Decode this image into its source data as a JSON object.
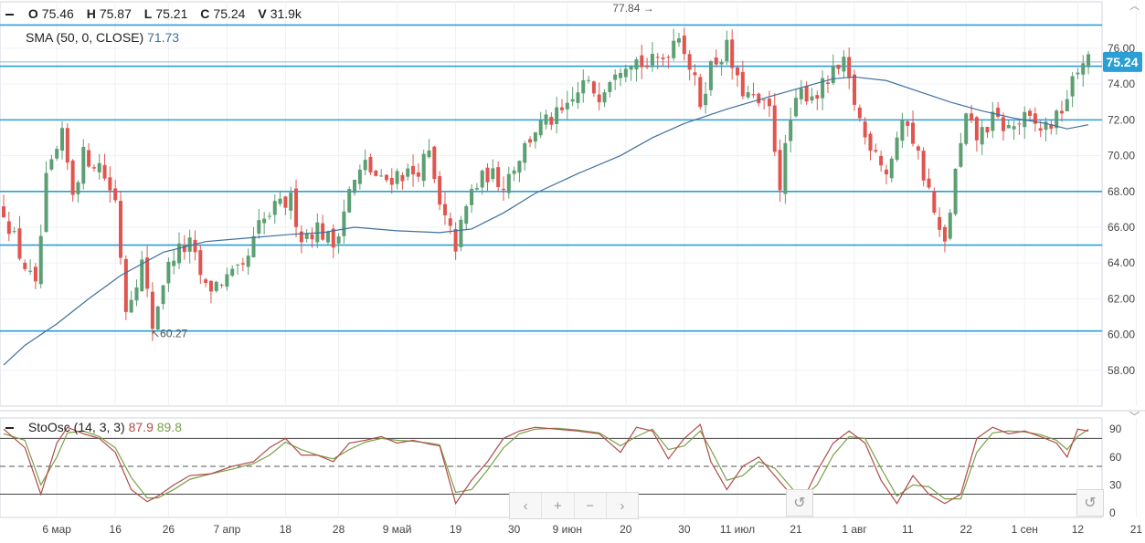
{
  "chart_data": {
    "type": "candlestick",
    "ohlc_legend": [
      {
        "label": "O",
        "value": "75.46"
      },
      {
        "label": "H",
        "value": "75.87"
      },
      {
        "label": "L",
        "value": "75.21"
      },
      {
        "label": "C",
        "value": "75.24"
      },
      {
        "label": "V",
        "value": "31.9k"
      }
    ],
    "sma_legend": {
      "label": "SMA (50, 0, CLOSE)",
      "value": "71.73"
    },
    "stoch_legend": {
      "label": "StoOsc (14, 3, 3)",
      "k": "87.9",
      "d": "89.8"
    },
    "last_price_label": "75.24",
    "last_price": 75.24,
    "ylim": [
      56,
      78.6
    ],
    "yticks": [
      {
        "v": 58,
        "label": "58.00"
      },
      {
        "v": 60,
        "label": "60.00"
      },
      {
        "v": 62,
        "label": "62.00"
      },
      {
        "v": 64,
        "label": "64.00"
      },
      {
        "v": 66,
        "label": "66.00"
      },
      {
        "v": 68,
        "label": "68.00"
      },
      {
        "v": 70,
        "label": "70.00"
      },
      {
        "v": 72,
        "label": "72.00"
      },
      {
        "v": 74,
        "label": "74.00"
      },
      {
        "v": 76,
        "label": "76.00"
      }
    ],
    "levels": [
      75,
      72,
      68,
      65,
      60.2,
      77.3
    ],
    "annotations": [
      {
        "text": "77.84 →",
        "value": 77.84,
        "index": 123,
        "side": "left"
      },
      {
        "text": "↖60.27",
        "value": 60.27,
        "index": 27,
        "side": "right"
      }
    ],
    "xticks": [
      {
        "i": 10,
        "label": "6 мар"
      },
      {
        "i": 21,
        "label": "16"
      },
      {
        "i": 31,
        "label": "26"
      },
      {
        "i": 42,
        "label": "7 апр"
      },
      {
        "i": 53,
        "label": "18"
      },
      {
        "i": 63,
        "label": "28"
      },
      {
        "i": 74,
        "label": "9 май"
      },
      {
        "i": 85,
        "label": "19"
      },
      {
        "i": 96,
        "label": "30"
      },
      {
        "i": 106,
        "label": "9 июн"
      },
      {
        "i": 117,
        "label": "20"
      },
      {
        "i": 128,
        "label": "30"
      },
      {
        "i": 138,
        "label": "11 июл"
      },
      {
        "i": 149,
        "label": "21"
      },
      {
        "i": 160,
        "label": "1 авг"
      },
      {
        "i": 170,
        "label": "11"
      },
      {
        "i": 181,
        "label": "22"
      },
      {
        "i": 192,
        "label": "1 сен"
      },
      {
        "i": 202,
        "label": "12"
      },
      {
        "i": 213,
        "label": "21"
      }
    ],
    "close_path": [
      [
        0,
        67
      ],
      [
        3,
        64.5
      ],
      [
        6,
        62.5
      ],
      [
        8,
        68.5
      ],
      [
        11,
        71
      ],
      [
        13,
        68
      ],
      [
        15,
        70
      ],
      [
        18,
        69.5
      ],
      [
        21,
        67.5
      ],
      [
        23,
        61.5
      ],
      [
        26,
        64
      ],
      [
        28,
        60.5
      ],
      [
        30,
        63
      ],
      [
        32,
        64.5
      ],
      [
        35,
        65
      ],
      [
        38,
        62.5
      ],
      [
        41,
        63
      ],
      [
        45,
        63.5
      ],
      [
        48,
        66
      ],
      [
        51,
        67
      ],
      [
        54,
        67.5
      ],
      [
        56,
        65.5
      ],
      [
        59,
        66
      ],
      [
        62,
        65
      ],
      [
        65,
        68
      ],
      [
        68,
        69.5
      ],
      [
        71,
        68.5
      ],
      [
        74,
        69
      ],
      [
        77,
        69
      ],
      [
        80,
        70
      ],
      [
        82,
        67
      ],
      [
        85,
        65
      ],
      [
        88,
        68
      ],
      [
        91,
        69
      ],
      [
        94,
        68.5
      ],
      [
        97,
        70
      ],
      [
        100,
        71.5
      ],
      [
        103,
        72
      ],
      [
        106,
        72.5
      ],
      [
        109,
        74
      ],
      [
        112,
        73.5
      ],
      [
        115,
        75
      ],
      [
        118,
        75.5
      ],
      [
        121,
        75
      ],
      [
        124,
        75.5
      ],
      [
        127,
        77
      ],
      [
        129,
        75
      ],
      [
        131,
        73
      ],
      [
        133,
        75
      ],
      [
        136,
        76
      ],
      [
        138,
        74
      ],
      [
        141,
        73
      ],
      [
        144,
        72.5
      ],
      [
        146,
        68.5
      ],
      [
        148,
        72
      ],
      [
        150,
        73.5
      ],
      [
        153,
        73.5
      ],
      [
        156,
        74.5
      ],
      [
        158,
        75
      ],
      [
        160,
        73
      ],
      [
        162,
        71
      ],
      [
        164,
        70.5
      ],
      [
        166,
        69
      ],
      [
        168,
        71
      ],
      [
        170,
        72
      ],
      [
        172,
        70
      ],
      [
        174,
        68
      ],
      [
        176,
        65.5
      ],
      [
        177,
        65
      ],
      [
        179,
        69
      ],
      [
        181,
        72
      ],
      [
        183,
        71
      ],
      [
        186,
        72
      ],
      [
        189,
        71.5
      ],
      [
        192,
        72
      ],
      [
        195,
        71.5
      ],
      [
        198,
        72
      ],
      [
        201,
        74
      ],
      [
        203,
        75.5
      ],
      [
        204,
        75.24
      ]
    ],
    "sma_path": [
      [
        0,
        58.3
      ],
      [
        4,
        59.4
      ],
      [
        10,
        60.6
      ],
      [
        16,
        62
      ],
      [
        22,
        63.3
      ],
      [
        30,
        64.6
      ],
      [
        38,
        65.2
      ],
      [
        46,
        65.4
      ],
      [
        54,
        65.6
      ],
      [
        60,
        65.7
      ],
      [
        66,
        66
      ],
      [
        74,
        65.8
      ],
      [
        82,
        65.7
      ],
      [
        88,
        65.9
      ],
      [
        94,
        66.8
      ],
      [
        100,
        67.9
      ],
      [
        108,
        69
      ],
      [
        116,
        70
      ],
      [
        122,
        71
      ],
      [
        128,
        71.8
      ],
      [
        136,
        72.6
      ],
      [
        144,
        73.3
      ],
      [
        150,
        73.8
      ],
      [
        156,
        74.3
      ],
      [
        160,
        74.4
      ],
      [
        166,
        74.2
      ],
      [
        172,
        73.6
      ],
      [
        178,
        73
      ],
      [
        184,
        72.5
      ],
      [
        190,
        72.1
      ],
      [
        196,
        71.8
      ],
      [
        200,
        71.5
      ],
      [
        204,
        71.73
      ]
    ],
    "stoch_ylim": [
      -5,
      102
    ],
    "stoch_yticks": [
      {
        "v": 0,
        "label": "0"
      },
      {
        "v": 30,
        "label": "30"
      },
      {
        "v": 60,
        "label": "60"
      },
      {
        "v": 90,
        "label": "90"
      }
    ],
    "stoch_levels": {
      "upper": 80,
      "middle": 50,
      "lower": 20
    },
    "stoch_k": [
      [
        0,
        90
      ],
      [
        4,
        70
      ],
      [
        7,
        20
      ],
      [
        10,
        75
      ],
      [
        12,
        92
      ],
      [
        15,
        85
      ],
      [
        18,
        80
      ],
      [
        21,
        65
      ],
      [
        24,
        25
      ],
      [
        27,
        12
      ],
      [
        29,
        18
      ],
      [
        32,
        30
      ],
      [
        35,
        40
      ],
      [
        39,
        42
      ],
      [
        43,
        50
      ],
      [
        47,
        55
      ],
      [
        50,
        70
      ],
      [
        53,
        80
      ],
      [
        56,
        62
      ],
      [
        59,
        62
      ],
      [
        62,
        55
      ],
      [
        65,
        75
      ],
      [
        68,
        78
      ],
      [
        71,
        82
      ],
      [
        74,
        75
      ],
      [
        77,
        78
      ],
      [
        80,
        74
      ],
      [
        82,
        72
      ],
      [
        85,
        10
      ],
      [
        88,
        35
      ],
      [
        91,
        55
      ],
      [
        94,
        80
      ],
      [
        97,
        88
      ],
      [
        100,
        92
      ],
      [
        104,
        90
      ],
      [
        108,
        88
      ],
      [
        112,
        85
      ],
      [
        116,
        65
      ],
      [
        119,
        92
      ],
      [
        122,
        88
      ],
      [
        125,
        58
      ],
      [
        128,
        80
      ],
      [
        131,
        95
      ],
      [
        133,
        55
      ],
      [
        136,
        25
      ],
      [
        139,
        50
      ],
      [
        142,
        60
      ],
      [
        145,
        40
      ],
      [
        148,
        20
      ],
      [
        150,
        10
      ],
      [
        153,
        45
      ],
      [
        156,
        75
      ],
      [
        159,
        88
      ],
      [
        162,
        75
      ],
      [
        165,
        35
      ],
      [
        168,
        10
      ],
      [
        171,
        40
      ],
      [
        174,
        20
      ],
      [
        177,
        10
      ],
      [
        180,
        20
      ],
      [
        183,
        80
      ],
      [
        186,
        92
      ],
      [
        189,
        85
      ],
      [
        192,
        88
      ],
      [
        195,
        82
      ],
      [
        198,
        75
      ],
      [
        200,
        60
      ],
      [
        202,
        90
      ],
      [
        204,
        87.9
      ]
    ],
    "stoch_d": [
      [
        0,
        85
      ],
      [
        4,
        78
      ],
      [
        7,
        30
      ],
      [
        10,
        60
      ],
      [
        12,
        86
      ],
      [
        15,
        88
      ],
      [
        18,
        82
      ],
      [
        21,
        70
      ],
      [
        24,
        38
      ],
      [
        27,
        16
      ],
      [
        29,
        16
      ],
      [
        32,
        25
      ],
      [
        35,
        36
      ],
      [
        39,
        42
      ],
      [
        43,
        47
      ],
      [
        47,
        53
      ],
      [
        50,
        62
      ],
      [
        53,
        76
      ],
      [
        56,
        68
      ],
      [
        59,
        62
      ],
      [
        62,
        58
      ],
      [
        65,
        68
      ],
      [
        68,
        76
      ],
      [
        71,
        80
      ],
      [
        74,
        78
      ],
      [
        77,
        77
      ],
      [
        80,
        75
      ],
      [
        82,
        73
      ],
      [
        85,
        22
      ],
      [
        88,
        25
      ],
      [
        91,
        46
      ],
      [
        94,
        70
      ],
      [
        97,
        85
      ],
      [
        100,
        90
      ],
      [
        104,
        91
      ],
      [
        108,
        89
      ],
      [
        112,
        86
      ],
      [
        116,
        72
      ],
      [
        119,
        82
      ],
      [
        122,
        90
      ],
      [
        125,
        68
      ],
      [
        128,
        72
      ],
      [
        131,
        88
      ],
      [
        133,
        68
      ],
      [
        136,
        35
      ],
      [
        139,
        40
      ],
      [
        142,
        55
      ],
      [
        145,
        48
      ],
      [
        148,
        28
      ],
      [
        150,
        15
      ],
      [
        153,
        30
      ],
      [
        156,
        62
      ],
      [
        159,
        82
      ],
      [
        162,
        80
      ],
      [
        165,
        48
      ],
      [
        168,
        18
      ],
      [
        171,
        30
      ],
      [
        174,
        28
      ],
      [
        177,
        15
      ],
      [
        180,
        15
      ],
      [
        183,
        65
      ],
      [
        186,
        86
      ],
      [
        189,
        88
      ],
      [
        192,
        87
      ],
      [
        195,
        84
      ],
      [
        198,
        78
      ],
      [
        200,
        68
      ],
      [
        202,
        82
      ],
      [
        204,
        89.8
      ]
    ],
    "colors": {
      "up": "#5b9f72",
      "down": "#e0554f",
      "level": "#2a9fd6",
      "sma": "#3f6f9f",
      "k": "#b24a4a",
      "d": "#7aa046",
      "price_badge": "#2a9fd6"
    }
  },
  "nav_buttons": [
    {
      "name": "scroll-left-button",
      "glyph": "‹"
    },
    {
      "name": "zoom-in-button",
      "glyph": "+"
    },
    {
      "name": "zoom-out-button",
      "glyph": "−"
    },
    {
      "name": "scroll-right-button",
      "glyph": "›"
    }
  ],
  "reset_glyph": "↺"
}
